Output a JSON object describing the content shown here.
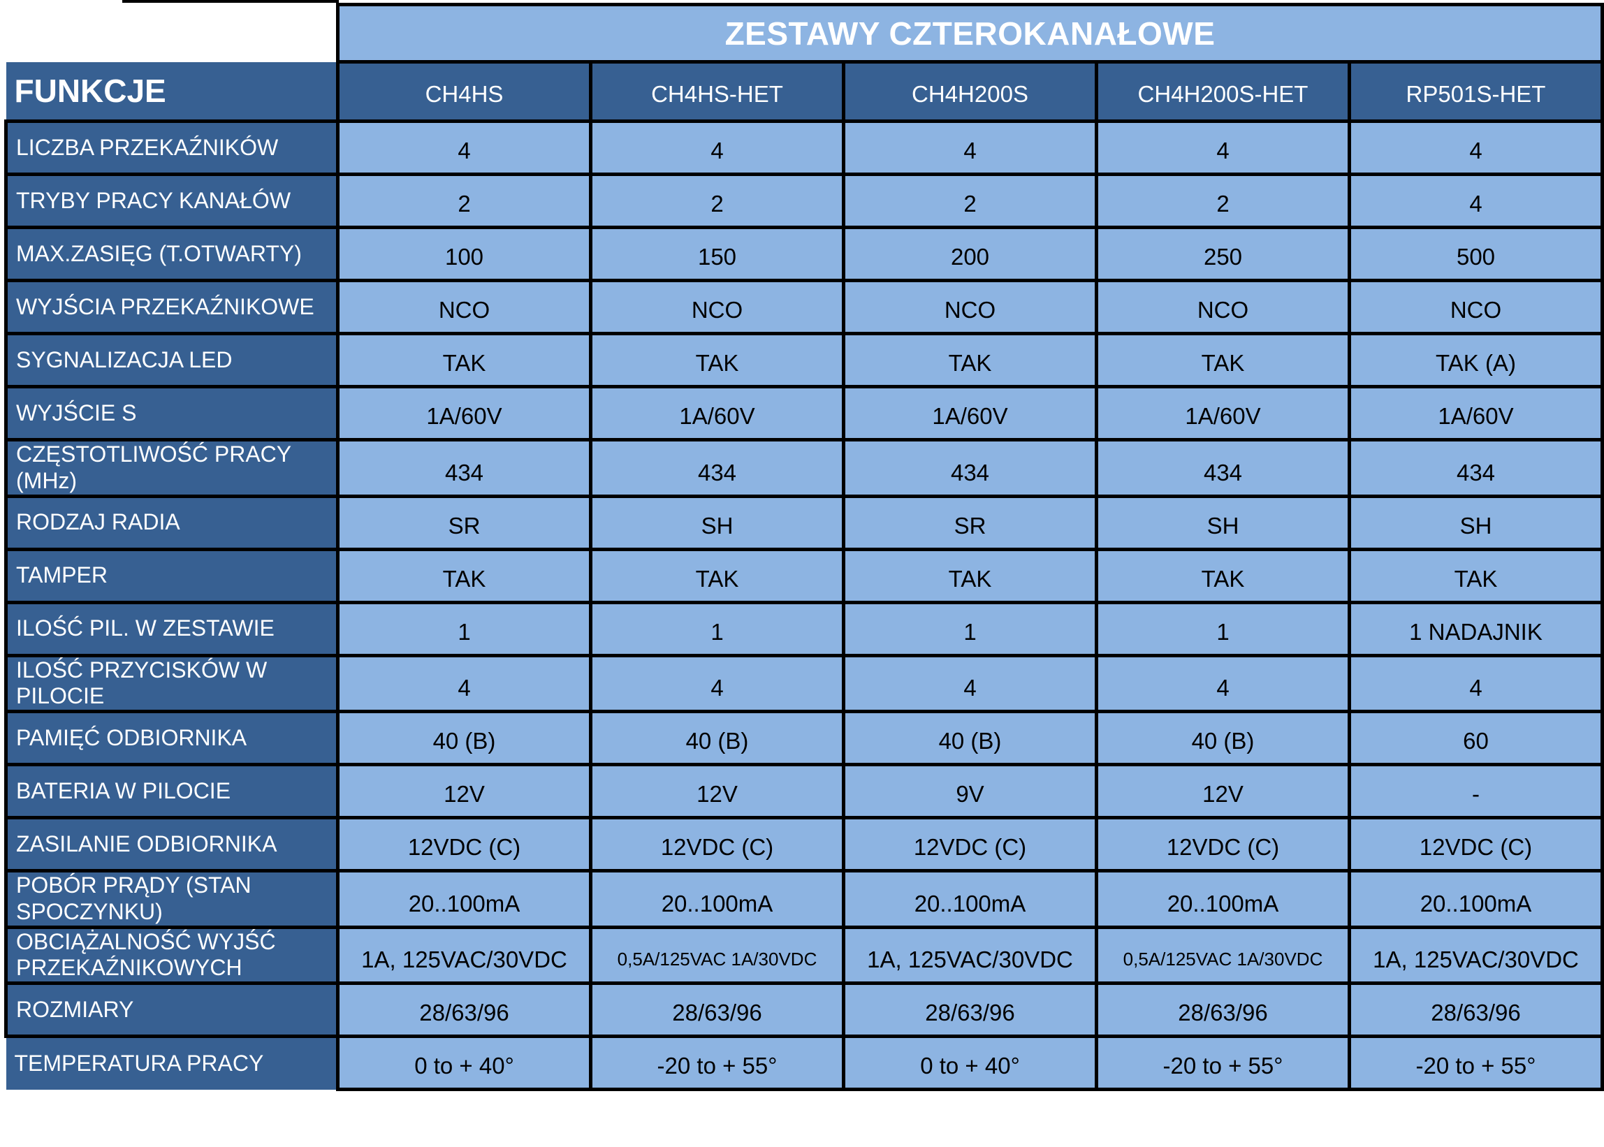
{
  "title": "ZESTAWY CZTEROKANAŁOWE",
  "table": {
    "corner_label": "FUNKCJE",
    "columns": [
      "CH4HS",
      "CH4HS-HET",
      "CH4H200S",
      "CH4H200S-HET",
      "RP501S-HET"
    ],
    "rows": [
      {
        "label": "LICZBA PRZEKAŹNIKÓW",
        "values": [
          "4",
          "4",
          "4",
          "4",
          "4"
        ]
      },
      {
        "label": "TRYBY PRACY KANAŁÓW",
        "values": [
          "2",
          "2",
          "2",
          "2",
          "4"
        ]
      },
      {
        "label": "MAX.ZASIĘG (T.OTWARTY)",
        "values": [
          "100",
          "150",
          "200",
          "250",
          "500"
        ]
      },
      {
        "label": "WYJŚCIA PRZEKAŹNIKOWE",
        "values": [
          "NCO",
          "NCO",
          "NCO",
          "NCO",
          "NCO"
        ]
      },
      {
        "label": "SYGNALIZACJA LED",
        "values": [
          "TAK",
          "TAK",
          "TAK",
          "TAK",
          "TAK (A)"
        ]
      },
      {
        "label": "WYJŚCIE S",
        "values": [
          "1A/60V",
          "1A/60V",
          "1A/60V",
          "1A/60V",
          "1A/60V"
        ]
      },
      {
        "label": "CZĘSTOTLIWOŚĆ PRACY (MHz)",
        "values": [
          "434",
          "434",
          "434",
          "434",
          "434"
        ]
      },
      {
        "label": "RODZAJ RADIA",
        "values": [
          "SR",
          "SH",
          "SR",
          "SH",
          "SH"
        ]
      },
      {
        "label": "TAMPER",
        "values": [
          "TAK",
          "TAK",
          "TAK",
          "TAK",
          "TAK"
        ]
      },
      {
        "label": "ILOŚĆ PIL. W ZESTAWIE",
        "values": [
          "1",
          "1",
          "1",
          "1",
          "1 NADAJNIK"
        ]
      },
      {
        "label": "ILOŚĆ PRZYCISKÓW W PILOCIE",
        "values": [
          "4",
          "4",
          "4",
          "4",
          "4"
        ]
      },
      {
        "label": "PAMIĘĆ ODBIORNIKA",
        "values": [
          "40 (B)",
          "40 (B)",
          "40 (B)",
          "40 (B)",
          "60"
        ]
      },
      {
        "label": "BATERIA W PILOCIE",
        "values": [
          "12V",
          "12V",
          "9V",
          "12V",
          "-"
        ]
      },
      {
        "label": "ZASILANIE ODBIORNIKA",
        "values": [
          "12VDC (C)",
          "12VDC (C)",
          "12VDC (C)",
          "12VDC (C)",
          "12VDC (C)"
        ]
      },
      {
        "label": "POBÓR PRĄDY (STAN SPOCZYNKU)",
        "values": [
          "20..100mA",
          "20..100mA",
          "20..100mA",
          "20..100mA",
          "20..100mA"
        ]
      },
      {
        "label": "OBCIĄŻALNOŚĆ WYJŚĆ PRZEKAŹNIKOWYCH",
        "values": [
          "1A, 125VAC/30VDC",
          "0,5A/125VAC 1A/30VDC",
          "1A, 125VAC/30VDC",
          "0,5A/125VAC 1A/30VDC",
          "1A, 125VAC/30VDC"
        ]
      },
      {
        "label": "ROZMIARY",
        "values": [
          "28/63/96",
          "28/63/96",
          "28/63/96",
          "28/63/96",
          "28/63/96"
        ]
      },
      {
        "label": "TEMPERATURA PRACY",
        "values": [
          "0 to + 40°",
          "-20 to + 55°",
          "0 to + 40°",
          "-20 to + 55°",
          "-20 to + 55°"
        ]
      }
    ]
  },
  "colors": {
    "dark_bg": "#376092",
    "cell_bg": "#8DB4E2",
    "border": "#000000",
    "header_text": "#FFFFFF",
    "cell_text": "#000000",
    "page_bg": "#FFFFFF"
  }
}
